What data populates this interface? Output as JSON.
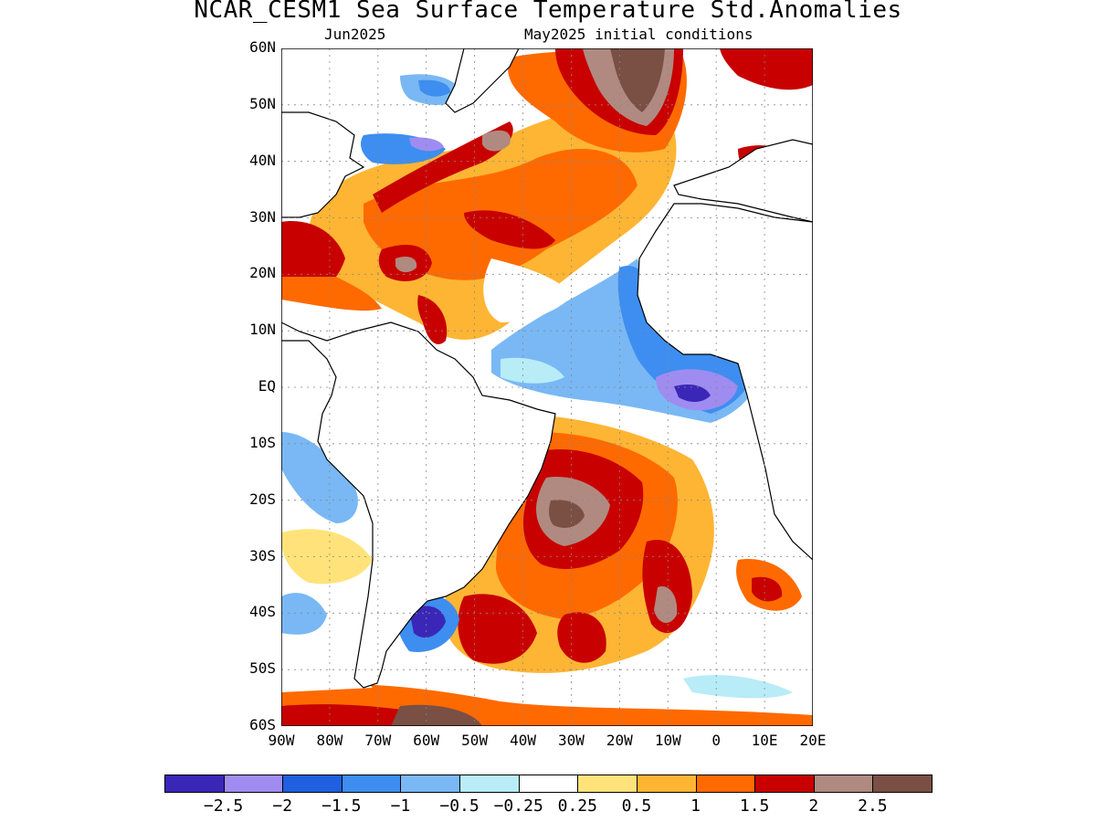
{
  "title": "NCAR_CESM1 Sea Surface Temperature Std.Anomalies",
  "subtitle_left": "Jun2025",
  "subtitle_right": "May2025 initial conditions",
  "map": {
    "lon_range": [
      -90,
      20
    ],
    "lat_range": [
      -60,
      60
    ],
    "lat_ticks": [
      "60N",
      "50N",
      "40N",
      "30N",
      "20N",
      "10N",
      "EQ",
      "10S",
      "20S",
      "30S",
      "40S",
      "50S",
      "60S"
    ],
    "lon_ticks": [
      "90W",
      "80W",
      "70W",
      "60W",
      "50W",
      "40W",
      "30W",
      "20W",
      "10W",
      "0",
      "10E",
      "20E"
    ],
    "gridlines": "dotted"
  },
  "colorbar": {
    "colors": [
      "#3a27b8",
      "#9f8cf0",
      "#1f5fe0",
      "#3d8ef0",
      "#79b8f4",
      "#b8ecf7",
      "#ffffff",
      "#ffe37a",
      "#ffb534",
      "#ff6a00",
      "#c80000",
      "#b08a80",
      "#7a4f44"
    ],
    "labels": [
      "−2.5",
      "−2",
      "−1.5",
      "−1",
      "−0.5",
      "−0.25",
      "0.25",
      "0.5",
      "1",
      "1.5",
      "2",
      "2.5"
    ]
  }
}
